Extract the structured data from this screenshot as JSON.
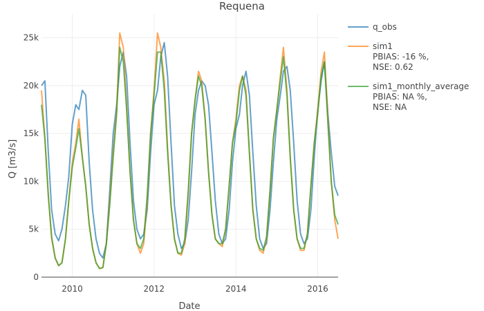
{
  "chart_data": {
    "type": "line",
    "title": "Requena",
    "xlabel": "Date",
    "ylabel": "Q [m3/s]",
    "xlim": [
      "2009-04-01",
      "2016-07-01"
    ],
    "ylim": [
      0,
      27500
    ],
    "x_ticks": [
      "2010-01-01",
      "2012-01-01",
      "2014-01-01",
      "2016-01-01"
    ],
    "x_tick_labels": [
      "2010",
      "2012",
      "2014",
      "2016"
    ],
    "y_ticks": [
      0,
      5000,
      10000,
      15000,
      20000,
      25000
    ],
    "y_tick_labels": [
      "0",
      "5k",
      "10k",
      "15k",
      "20k",
      "25k"
    ],
    "grid": true,
    "legend_position": "top-right",
    "series": [
      {
        "name": "q_obs",
        "color": "#1f77b4",
        "points": [
          [
            "2009-04-01",
            20000
          ],
          [
            "2009-05-01",
            20500
          ],
          [
            "2009-06-01",
            13000
          ],
          [
            "2009-07-01",
            7000
          ],
          [
            "2009-08-01",
            4500
          ],
          [
            "2009-09-01",
            3800
          ],
          [
            "2009-10-01",
            5000
          ],
          [
            "2009-11-01",
            7500
          ],
          [
            "2009-12-01",
            10500
          ],
          [
            "2010-01-01",
            16000
          ],
          [
            "2010-02-01",
            18000
          ],
          [
            "2010-03-01",
            17500
          ],
          [
            "2010-04-01",
            19500
          ],
          [
            "2010-05-01",
            19000
          ],
          [
            "2010-06-01",
            12000
          ],
          [
            "2010-07-01",
            7000
          ],
          [
            "2010-08-01",
            4000
          ],
          [
            "2010-09-01",
            2500
          ],
          [
            "2010-10-01",
            2000
          ],
          [
            "2010-11-01",
            3500
          ],
          [
            "2010-12-01",
            9000
          ],
          [
            "2011-01-01",
            15000
          ],
          [
            "2011-02-01",
            18000
          ],
          [
            "2011-03-01",
            22000
          ],
          [
            "2011-04-01",
            23500
          ],
          [
            "2011-05-01",
            21000
          ],
          [
            "2011-06-01",
            14000
          ],
          [
            "2011-07-01",
            8000
          ],
          [
            "2011-08-01",
            5000
          ],
          [
            "2011-09-01",
            4000
          ],
          [
            "2011-10-01",
            4500
          ],
          [
            "2011-11-01",
            7000
          ],
          [
            "2011-12-01",
            13000
          ],
          [
            "2012-01-01",
            18000
          ],
          [
            "2012-02-01",
            19500
          ],
          [
            "2012-03-01",
            23000
          ],
          [
            "2012-04-01",
            24500
          ],
          [
            "2012-05-01",
            21000
          ],
          [
            "2012-06-01",
            14000
          ],
          [
            "2012-07-01",
            7500
          ],
          [
            "2012-08-01",
            4500
          ],
          [
            "2012-09-01",
            3000
          ],
          [
            "2012-10-01",
            3500
          ],
          [
            "2012-11-01",
            6000
          ],
          [
            "2012-12-01",
            11000
          ],
          [
            "2013-01-01",
            17000
          ],
          [
            "2013-02-01",
            19500
          ],
          [
            "2013-03-01",
            20500
          ],
          [
            "2013-04-01",
            20000
          ],
          [
            "2013-05-01",
            18000
          ],
          [
            "2013-06-01",
            13000
          ],
          [
            "2013-07-01",
            8000
          ],
          [
            "2013-08-01",
            4500
          ],
          [
            "2013-09-01",
            3500
          ],
          [
            "2013-10-01",
            4000
          ],
          [
            "2013-11-01",
            7000
          ],
          [
            "2013-12-01",
            12000
          ],
          [
            "2014-01-01",
            15500
          ],
          [
            "2014-02-01",
            17000
          ],
          [
            "2014-03-01",
            20000
          ],
          [
            "2014-04-01",
            21500
          ],
          [
            "2014-05-01",
            19000
          ],
          [
            "2014-06-01",
            13000
          ],
          [
            "2014-07-01",
            7500
          ],
          [
            "2014-08-01",
            4000
          ],
          [
            "2014-09-01",
            3000
          ],
          [
            "2014-10-01",
            3500
          ],
          [
            "2014-11-01",
            7000
          ],
          [
            "2014-12-01",
            12000
          ],
          [
            "2015-01-01",
            16500
          ],
          [
            "2015-02-01",
            19000
          ],
          [
            "2015-03-01",
            21500
          ],
          [
            "2015-04-01",
            22000
          ],
          [
            "2015-05-01",
            19500
          ],
          [
            "2015-06-01",
            14000
          ],
          [
            "2015-07-01",
            8000
          ],
          [
            "2015-08-01",
            4500
          ],
          [
            "2015-09-01",
            3500
          ],
          [
            "2015-10-01",
            4000
          ],
          [
            "2015-11-01",
            7000
          ],
          [
            "2015-12-01",
            12500
          ],
          [
            "2016-01-01",
            17500
          ],
          [
            "2016-02-01",
            20500
          ],
          [
            "2016-03-01",
            22500
          ],
          [
            "2016-04-01",
            17000
          ],
          [
            "2016-05-01",
            13000
          ],
          [
            "2016-06-01",
            9500
          ],
          [
            "2016-07-01",
            8500
          ]
        ]
      },
      {
        "name": "sim1",
        "legend_lines": [
          "sim1",
          "PBIAS: -16 %,",
          "NSE: 0.62"
        ],
        "color": "#ff7f0e",
        "points": [
          [
            "2009-04-01",
            19500
          ],
          [
            "2009-05-01",
            14500
          ],
          [
            "2009-06-01",
            8500
          ],
          [
            "2009-07-01",
            4000
          ],
          [
            "2009-08-01",
            2000
          ],
          [
            "2009-09-01",
            1200
          ],
          [
            "2009-10-01",
            1500
          ],
          [
            "2009-11-01",
            4000
          ],
          [
            "2009-12-01",
            8000
          ],
          [
            "2010-01-01",
            12000
          ],
          [
            "2010-02-01",
            14000
          ],
          [
            "2010-03-01",
            16500
          ],
          [
            "2010-04-01",
            12500
          ],
          [
            "2010-05-01",
            9500
          ],
          [
            "2010-06-01",
            5500
          ],
          [
            "2010-07-01",
            3000
          ],
          [
            "2010-08-01",
            1500
          ],
          [
            "2010-09-01",
            900
          ],
          [
            "2010-10-01",
            1000
          ],
          [
            "2010-11-01",
            3500
          ],
          [
            "2010-12-01",
            8000
          ],
          [
            "2011-01-01",
            13000
          ],
          [
            "2011-02-01",
            17500
          ],
          [
            "2011-03-01",
            25500
          ],
          [
            "2011-04-01",
            24000
          ],
          [
            "2011-05-01",
            18000
          ],
          [
            "2011-06-01",
            11000
          ],
          [
            "2011-07-01",
            6000
          ],
          [
            "2011-08-01",
            3500
          ],
          [
            "2011-09-01",
            2500
          ],
          [
            "2011-10-01",
            3500
          ],
          [
            "2011-11-01",
            8000
          ],
          [
            "2011-12-01",
            15000
          ],
          [
            "2012-01-01",
            19500
          ],
          [
            "2012-02-01",
            25500
          ],
          [
            "2012-03-01",
            24000
          ],
          [
            "2012-04-01",
            20500
          ],
          [
            "2012-05-01",
            13500
          ],
          [
            "2012-06-01",
            7500
          ],
          [
            "2012-07-01",
            4000
          ],
          [
            "2012-08-01",
            2500
          ],
          [
            "2012-09-01",
            2300
          ],
          [
            "2012-10-01",
            3500
          ],
          [
            "2012-11-01",
            8500
          ],
          [
            "2012-12-01",
            15000
          ],
          [
            "2013-01-01",
            18500
          ],
          [
            "2013-02-01",
            21500
          ],
          [
            "2013-03-01",
            20500
          ],
          [
            "2013-04-01",
            16500
          ],
          [
            "2013-05-01",
            11000
          ],
          [
            "2013-06-01",
            6500
          ],
          [
            "2013-07-01",
            4000
          ],
          [
            "2013-08-01",
            3500
          ],
          [
            "2013-09-01",
            3200
          ],
          [
            "2013-10-01",
            5000
          ],
          [
            "2013-11-01",
            9500
          ],
          [
            "2013-12-01",
            14000
          ],
          [
            "2014-01-01",
            16500
          ],
          [
            "2014-02-01",
            20000
          ],
          [
            "2014-03-01",
            21000
          ],
          [
            "2014-04-01",
            19500
          ],
          [
            "2014-05-01",
            13000
          ],
          [
            "2014-06-01",
            7000
          ],
          [
            "2014-07-01",
            4000
          ],
          [
            "2014-08-01",
            2800
          ],
          [
            "2014-09-01",
            2500
          ],
          [
            "2014-10-01",
            4000
          ],
          [
            "2014-11-01",
            9000
          ],
          [
            "2014-12-01",
            14500
          ],
          [
            "2015-01-01",
            17500
          ],
          [
            "2015-02-01",
            21000
          ],
          [
            "2015-03-01",
            24000
          ],
          [
            "2015-04-01",
            19500
          ],
          [
            "2015-05-01",
            12500
          ],
          [
            "2015-06-01",
            7000
          ],
          [
            "2015-07-01",
            4000
          ],
          [
            "2015-08-01",
            2800
          ],
          [
            "2015-09-01",
            2800
          ],
          [
            "2015-10-01",
            4500
          ],
          [
            "2015-11-01",
            9500
          ],
          [
            "2015-12-01",
            14000
          ],
          [
            "2016-01-01",
            17500
          ],
          [
            "2016-02-01",
            21500
          ],
          [
            "2016-03-01",
            23500
          ],
          [
            "2016-04-01",
            16500
          ],
          [
            "2016-05-01",
            10000
          ],
          [
            "2016-06-01",
            6000
          ],
          [
            "2016-07-01",
            4000
          ]
        ]
      },
      {
        "name": "sim1_monthly_average",
        "legend_lines": [
          "sim1_monthly_average",
          "PBIAS: NA %,",
          "NSE: NA"
        ],
        "color": "#2ca02c",
        "points": [
          [
            "2009-04-01",
            18000
          ],
          [
            "2009-05-01",
            14500
          ],
          [
            "2009-06-01",
            8500
          ],
          [
            "2009-07-01",
            4200
          ],
          [
            "2009-08-01",
            2000
          ],
          [
            "2009-09-01",
            1200
          ],
          [
            "2009-10-01",
            1500
          ],
          [
            "2009-11-01",
            4000
          ],
          [
            "2009-12-01",
            8000
          ],
          [
            "2010-01-01",
            11500
          ],
          [
            "2010-02-01",
            13500
          ],
          [
            "2010-03-01",
            15500
          ],
          [
            "2010-04-01",
            12500
          ],
          [
            "2010-05-01",
            9500
          ],
          [
            "2010-06-01",
            5500
          ],
          [
            "2010-07-01",
            3000
          ],
          [
            "2010-08-01",
            1500
          ],
          [
            "2010-09-01",
            900
          ],
          [
            "2010-10-01",
            1000
          ],
          [
            "2010-11-01",
            3500
          ],
          [
            "2010-12-01",
            7500
          ],
          [
            "2011-01-01",
            12500
          ],
          [
            "2011-02-01",
            17000
          ],
          [
            "2011-03-01",
            24000
          ],
          [
            "2011-04-01",
            22500
          ],
          [
            "2011-05-01",
            17500
          ],
          [
            "2011-06-01",
            11000
          ],
          [
            "2011-07-01",
            6000
          ],
          [
            "2011-08-01",
            3500
          ],
          [
            "2011-09-01",
            3000
          ],
          [
            "2011-10-01",
            4000
          ],
          [
            "2011-11-01",
            8500
          ],
          [
            "2011-12-01",
            15000
          ],
          [
            "2012-01-01",
            19000
          ],
          [
            "2012-02-01",
            23500
          ],
          [
            "2012-03-01",
            23500
          ],
          [
            "2012-04-01",
            19500
          ],
          [
            "2012-05-01",
            13000
          ],
          [
            "2012-06-01",
            7500
          ],
          [
            "2012-07-01",
            4000
          ],
          [
            "2012-08-01",
            2500
          ],
          [
            "2012-09-01",
            2500
          ],
          [
            "2012-10-01",
            4000
          ],
          [
            "2012-11-01",
            9000
          ],
          [
            "2012-12-01",
            15000
          ],
          [
            "2013-01-01",
            18500
          ],
          [
            "2013-02-01",
            21000
          ],
          [
            "2013-03-01",
            20000
          ],
          [
            "2013-04-01",
            16500
          ],
          [
            "2013-05-01",
            11000
          ],
          [
            "2013-06-01",
            6500
          ],
          [
            "2013-07-01",
            4000
          ],
          [
            "2013-08-01",
            3500
          ],
          [
            "2013-09-01",
            3500
          ],
          [
            "2013-10-01",
            5000
          ],
          [
            "2013-11-01",
            9500
          ],
          [
            "2013-12-01",
            14000
          ],
          [
            "2014-01-01",
            16000
          ],
          [
            "2014-02-01",
            19500
          ],
          [
            "2014-03-01",
            21000
          ],
          [
            "2014-04-01",
            19000
          ],
          [
            "2014-05-01",
            13000
          ],
          [
            "2014-06-01",
            7000
          ],
          [
            "2014-07-01",
            4000
          ],
          [
            "2014-08-01",
            3000
          ],
          [
            "2014-09-01",
            2800
          ],
          [
            "2014-10-01",
            4200
          ],
          [
            "2014-11-01",
            9000
          ],
          [
            "2014-12-01",
            14500
          ],
          [
            "2015-01-01",
            17500
          ],
          [
            "2015-02-01",
            20500
          ],
          [
            "2015-03-01",
            23000
          ],
          [
            "2015-04-01",
            19000
          ],
          [
            "2015-05-01",
            12500
          ],
          [
            "2015-06-01",
            7000
          ],
          [
            "2015-07-01",
            4000
          ],
          [
            "2015-08-01",
            3000
          ],
          [
            "2015-09-01",
            3000
          ],
          [
            "2015-10-01",
            4500
          ],
          [
            "2015-11-01",
            9500
          ],
          [
            "2015-12-01",
            14000
          ],
          [
            "2016-01-01",
            17000
          ],
          [
            "2016-02-01",
            21000
          ],
          [
            "2016-03-01",
            22500
          ],
          [
            "2016-04-01",
            16000
          ],
          [
            "2016-05-01",
            10000
          ],
          [
            "2016-06-01",
            6500
          ],
          [
            "2016-07-01",
            5500
          ]
        ]
      }
    ]
  }
}
